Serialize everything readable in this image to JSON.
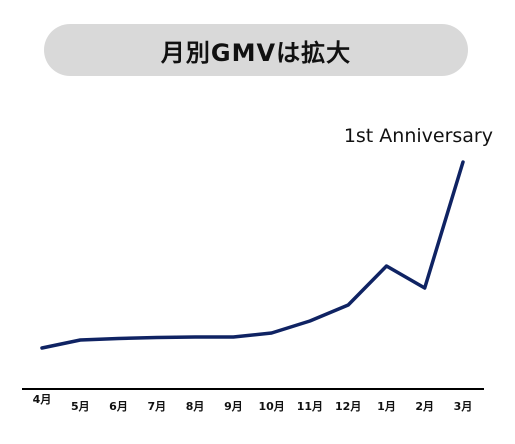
{
  "title": "月別GMVは拡大",
  "colors": {
    "line": "#0f2363",
    "title_bg": "#d9d9d9",
    "axis": "#000000"
  },
  "chart_data": {
    "type": "line",
    "title": "月別GMVは拡大",
    "categories": [
      "4月",
      "5月",
      "6月",
      "7月",
      "8月",
      "9月",
      "10月",
      "11月",
      "12月",
      "1月",
      "2月",
      "3月"
    ],
    "values": [
      4,
      12,
      13.5,
      14.5,
      15,
      15,
      19,
      31,
      47,
      86,
      64,
      190
    ],
    "ylim": [
      0,
      200
    ],
    "grid": false,
    "annotation": {
      "text": "1st Anniversary",
      "category": "3月"
    }
  }
}
